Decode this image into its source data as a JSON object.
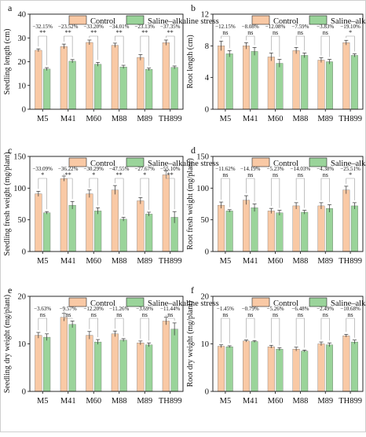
{
  "colors": {
    "control": "#f9c9a5",
    "stress": "#9ad49a",
    "axis": "#111111"
  },
  "legend": {
    "control": "Control",
    "stress": "Saline–alkaline stress"
  },
  "chart_data": [
    {
      "panel": "a",
      "type": "bar",
      "ylabel": "Seedling length (cm)",
      "ylim": [
        0,
        40
      ],
      "yticks": [
        0,
        10,
        20,
        30,
        40
      ],
      "categories": [
        "M5",
        "M41",
        "M60",
        "M88",
        "M89",
        "TH899"
      ],
      "series": [
        {
          "name": "Control",
          "values": [
            24.8,
            26.4,
            28.1,
            26.9,
            21.8,
            28.0
          ],
          "errors": [
            0.6,
            1.0,
            1.0,
            0.9,
            1.2,
            1.1
          ]
        },
        {
          "name": "Saline–alkaline stress",
          "values": [
            16.9,
            20.2,
            18.9,
            17.8,
            16.8,
            17.6
          ],
          "errors": [
            0.6,
            0.7,
            0.8,
            0.7,
            0.5,
            0.6
          ]
        }
      ],
      "percent_labels": [
        "−32.15%",
        "−23.52%",
        "−33.20%",
        "−34.01%",
        "−23.13%",
        "−37.35%"
      ],
      "significance": [
        "**",
        "**",
        "**",
        "**",
        "**",
        "**"
      ]
    },
    {
      "panel": "b",
      "type": "bar",
      "ylabel": "Root length (cm)",
      "ylim": [
        0,
        12
      ],
      "yticks": [
        0,
        4,
        8,
        12
      ],
      "categories": [
        "M5",
        "M41",
        "M60",
        "M88",
        "M89",
        "TH899"
      ],
      "series": [
        {
          "name": "Control",
          "values": [
            8.0,
            8.0,
            6.6,
            7.4,
            6.2,
            8.4
          ],
          "errors": [
            0.6,
            0.4,
            0.5,
            0.4,
            0.3,
            0.3
          ]
        },
        {
          "name": "Saline–alkaline stress",
          "values": [
            7.0,
            7.3,
            5.8,
            6.8,
            6.0,
            6.8
          ],
          "errors": [
            0.4,
            0.5,
            0.5,
            0.3,
            0.3,
            0.2
          ]
        }
      ],
      "percent_labels": [
        "−12.15%",
        "−8.08%",
        "−12.08%",
        "−7.59%",
        "−3.83%",
        "−19.10%"
      ],
      "significance": [
        "ns",
        "ns",
        "ns",
        "ns",
        "ns",
        "*"
      ]
    },
    {
      "panel": "c",
      "type": "bar",
      "ylabel": "Seedling fresh weight (mg/plant)",
      "ylim": [
        0,
        150
      ],
      "yticks": [
        0,
        50,
        100,
        150
      ],
      "categories": [
        "M5",
        "M41",
        "M60",
        "M88",
        "M89",
        "TH899"
      ],
      "series": [
        {
          "name": "Control",
          "values": [
            91,
            115,
            91,
            97,
            80,
            121
          ],
          "errors": [
            4,
            4,
            6,
            7,
            5,
            6
          ]
        },
        {
          "name": "Saline–alkaline stress",
          "values": [
            61,
            73,
            64,
            51,
            59,
            54
          ],
          "errors": [
            2,
            6,
            5,
            3,
            3,
            9
          ]
        }
      ],
      "percent_labels": [
        "−33.09%",
        "−36.22%",
        "−30.29%",
        "−47.55%",
        "−27.67%",
        "−55.10%"
      ],
      "significance": [
        "*",
        "**",
        "*",
        "**",
        "*",
        "**"
      ]
    },
    {
      "panel": "d",
      "type": "bar",
      "ylabel": "Root fresh weight (mg/plant)",
      "ylim": [
        0,
        150
      ],
      "yticks": [
        0,
        50,
        100,
        150
      ],
      "categories": [
        "M5",
        "M41",
        "M60",
        "M88",
        "M89",
        "TH899"
      ],
      "series": [
        {
          "name": "Control",
          "values": [
            73,
            81,
            64,
            72,
            72,
            97
          ],
          "errors": [
            5,
            7,
            4,
            5,
            5,
            6
          ]
        },
        {
          "name": "Saline–alkaline stress",
          "values": [
            64,
            69,
            61,
            62,
            68,
            72
          ],
          "errors": [
            2,
            6,
            4,
            3,
            6,
            5
          ]
        }
      ],
      "percent_labels": [
        "−11.62%",
        "−14.19%",
        "−5.23%",
        "−14.03%",
        "−4.38%",
        "−25.51%"
      ],
      "significance": [
        "ns",
        "ns",
        "ns",
        "ns",
        "ns",
        "*"
      ]
    },
    {
      "panel": "e",
      "type": "bar",
      "ylabel": "Seedling dry weight (mg/plant)",
      "ylim": [
        0,
        20
      ],
      "yticks": [
        0,
        10,
        20
      ],
      "categories": [
        "M5",
        "M41",
        "M60",
        "M88",
        "M89",
        "TH899"
      ],
      "series": [
        {
          "name": "Control",
          "values": [
            11.8,
            15.6,
            11.8,
            12.1,
            10.2,
            14.8
          ],
          "errors": [
            0.6,
            0.8,
            0.8,
            0.6,
            0.4,
            0.8
          ]
        },
        {
          "name": "Saline–alkaline stress",
          "values": [
            11.4,
            14.1,
            10.4,
            10.8,
            9.8,
            13.1
          ],
          "errors": [
            0.7,
            0.7,
            0.5,
            0.3,
            0.4,
            1.3
          ]
        }
      ],
      "percent_labels": [
        "−3.63%",
        "−9.57%",
        "−12.20%",
        "−11.26%",
        "−3.69%",
        "−11.44%"
      ],
      "significance": [
        "ns",
        "ns",
        "ns",
        "ns",
        "ns",
        "ns"
      ]
    },
    {
      "panel": "f",
      "type": "bar",
      "ylabel": "Root dry weight (mg/plant)",
      "ylim": [
        0,
        20
      ],
      "yticks": [
        0,
        10,
        20
      ],
      "categories": [
        "M5",
        "M41",
        "M60",
        "M88",
        "M89",
        "TH899"
      ],
      "series": [
        {
          "name": "Control",
          "values": [
            9.5,
            10.6,
            9.4,
            8.9,
            10.0,
            11.7
          ],
          "errors": [
            0.3,
            0.2,
            0.3,
            0.4,
            0.4,
            0.3
          ]
        },
        {
          "name": "Saline–alkaline stress",
          "values": [
            9.4,
            10.5,
            8.9,
            8.5,
            9.8,
            10.4
          ],
          "errors": [
            0.2,
            0.2,
            0.3,
            0.2,
            0.4,
            0.4
          ]
        }
      ],
      "percent_labels": [
        "−1.45%",
        "−0.79%",
        "−5.26%",
        "−6.48%",
        "−2.49%",
        "−10.68%"
      ],
      "significance": [
        "ns",
        "ns",
        "ns",
        "ns",
        "ns",
        "ns"
      ]
    }
  ]
}
